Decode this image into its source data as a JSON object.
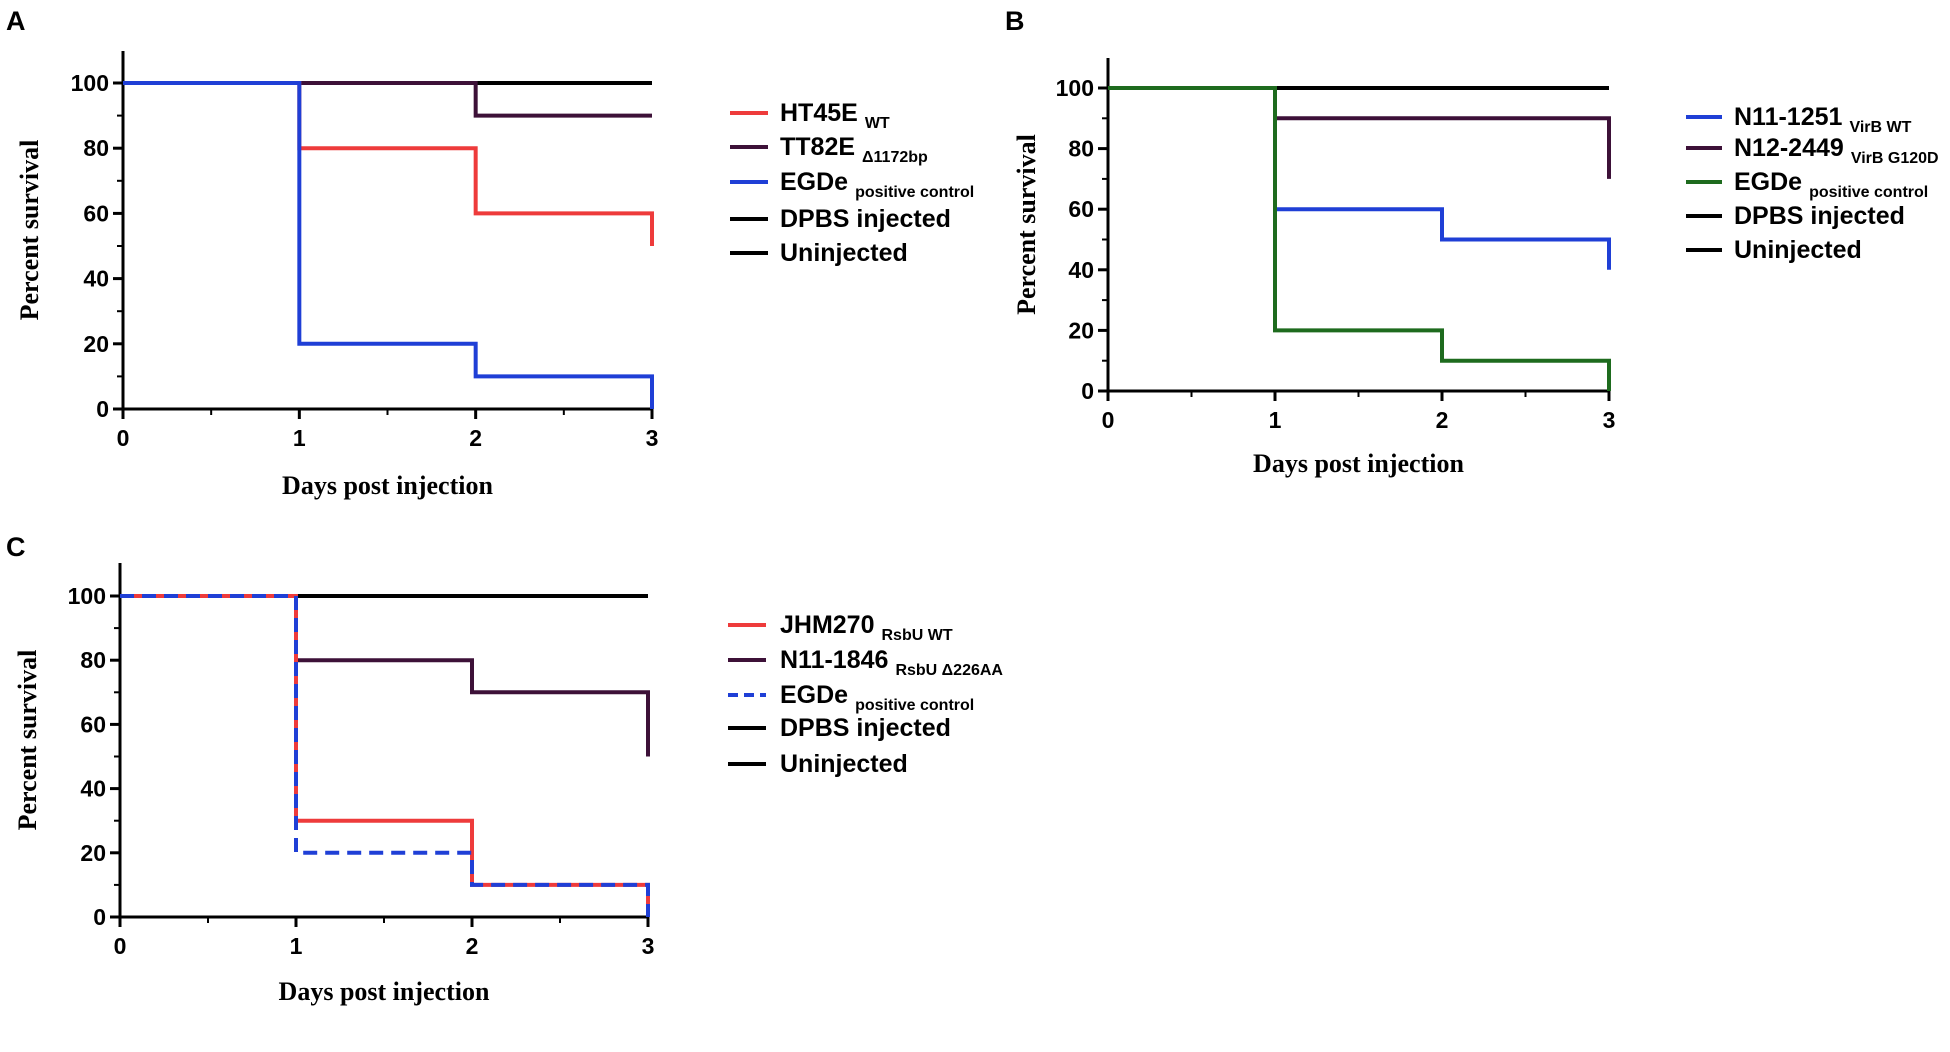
{
  "chart_data": [
    {
      "panel": "A",
      "type": "line",
      "step": true,
      "xlabel": "Days post injection",
      "ylabel": "Percent survival",
      "xlim": [
        0,
        3
      ],
      "ylim": [
        0,
        110
      ],
      "xticks": [
        0,
        1,
        2,
        3
      ],
      "yticks": [
        0,
        20,
        40,
        60,
        80,
        100
      ],
      "legend_position": "right",
      "series": [
        {
          "name": "Uninjected",
          "sub": "",
          "color": "#000000",
          "dash": false,
          "x": [
            0,
            3
          ],
          "y": [
            100,
            100
          ]
        },
        {
          "name": "DPBS injected",
          "sub": "",
          "color": "#000000",
          "dash": false,
          "x": [
            0,
            3
          ],
          "y": [
            100,
            100
          ]
        },
        {
          "name": "TT82E",
          "sub": "Δ1172bp",
          "color": "#3d1138",
          "dash": false,
          "x": [
            0,
            2,
            3
          ],
          "y": [
            100,
            90,
            90
          ]
        },
        {
          "name": "HT45E",
          "sub": "WT",
          "color": "#ee3b3b",
          "dash": false,
          "x": [
            0,
            1,
            2,
            3
          ],
          "y": [
            100,
            80,
            60,
            50
          ]
        },
        {
          "name": "EGDe",
          "sub": "positive control",
          "color": "#1f3fd6",
          "dash": false,
          "x": [
            0,
            1,
            2,
            3
          ],
          "y": [
            100,
            20,
            10,
            0
          ]
        }
      ],
      "legend_order": [
        3,
        2,
        4,
        1,
        0
      ]
    },
    {
      "panel": "B",
      "type": "line",
      "step": true,
      "xlabel": "Days post injection",
      "ylabel": "Percent survival",
      "xlim": [
        0,
        3
      ],
      "ylim": [
        0,
        110
      ],
      "xticks": [
        0,
        1,
        2,
        3
      ],
      "yticks": [
        0,
        20,
        40,
        60,
        80,
        100
      ],
      "legend_position": "right",
      "series": [
        {
          "name": "Uninjected",
          "sub": "",
          "color": "#000000",
          "dash": false,
          "x": [
            0,
            3
          ],
          "y": [
            100,
            100
          ]
        },
        {
          "name": "DPBS injected",
          "sub": "",
          "color": "#000000",
          "dash": false,
          "x": [
            0,
            3
          ],
          "y": [
            100,
            100
          ]
        },
        {
          "name": "N12-2449",
          "sub": "VirB G120D",
          "color": "#3d1138",
          "dash": false,
          "x": [
            0,
            1,
            3
          ],
          "y": [
            100,
            90,
            70
          ]
        },
        {
          "name": "N11-1251",
          "sub": "VirB WT",
          "color": "#1f3fd6",
          "dash": false,
          "x": [
            0,
            1,
            2,
            3
          ],
          "y": [
            100,
            60,
            50,
            40
          ]
        },
        {
          "name": "EGDe",
          "sub": "positive control",
          "color": "#1e6b1e",
          "dash": false,
          "x": [
            0,
            1,
            2,
            3
          ],
          "y": [
            100,
            20,
            10,
            0
          ]
        }
      ],
      "legend_order": [
        3,
        2,
        4,
        1,
        0
      ]
    },
    {
      "panel": "C",
      "type": "line",
      "step": true,
      "xlabel": "Days post injection",
      "ylabel": "Percent survival",
      "xlim": [
        0,
        3
      ],
      "ylim": [
        0,
        110
      ],
      "xticks": [
        0,
        1,
        2,
        3
      ],
      "yticks": [
        0,
        20,
        40,
        60,
        80,
        100
      ],
      "legend_position": "right",
      "series": [
        {
          "name": "Uninjected",
          "sub": "",
          "color": "#000000",
          "dash": false,
          "x": [
            0,
            3
          ],
          "y": [
            100,
            100
          ]
        },
        {
          "name": "DPBS injected",
          "sub": "",
          "color": "#000000",
          "dash": false,
          "x": [
            0,
            3
          ],
          "y": [
            100,
            100
          ]
        },
        {
          "name": "N11-1846",
          "sub": "RsbU Δ226AA",
          "color": "#3d1138",
          "dash": false,
          "x": [
            0,
            1,
            2,
            3
          ],
          "y": [
            100,
            80,
            70,
            50
          ]
        },
        {
          "name": "JHM270",
          "sub": "RsbU WT",
          "color": "#ee3b3b",
          "dash": false,
          "x": [
            0,
            1,
            2,
            3
          ],
          "y": [
            100,
            30,
            10,
            0
          ]
        },
        {
          "name": "EGDe",
          "sub": "positive control",
          "color": "#1f3fd6",
          "dash": true,
          "x": [
            0,
            1,
            2,
            3
          ],
          "y": [
            100,
            20,
            10,
            0
          ]
        }
      ],
      "legend_order": [
        3,
        2,
        4,
        1,
        0
      ]
    }
  ]
}
